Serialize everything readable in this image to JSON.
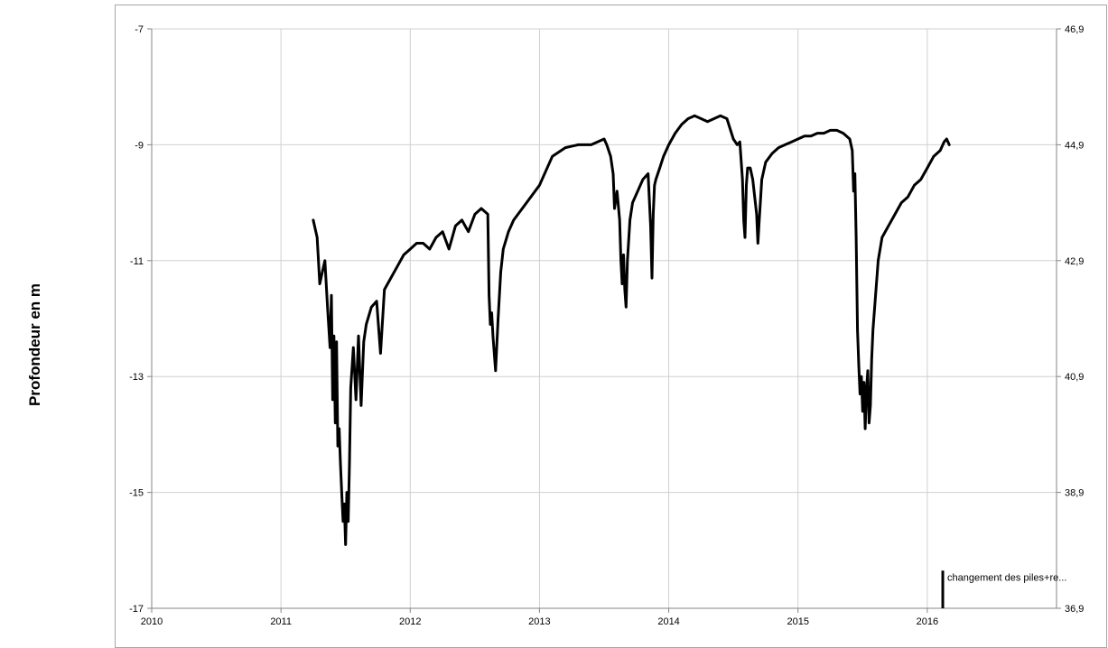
{
  "chart_data": {
    "type": "line",
    "title": "",
    "ylabel": "Profondeur en m",
    "xlabel": "",
    "y2label": "",
    "grid": true,
    "legend": "none",
    "xlim": [
      2010,
      2017
    ],
    "ylim": [
      -17,
      -7
    ],
    "y2lim": [
      36.9,
      46.9
    ],
    "x_ticks": [
      "2010",
      "2011",
      "2012",
      "2013",
      "2014",
      "2015",
      "2016"
    ],
    "y_ticks": [
      "-7",
      "-9",
      "-11",
      "-13",
      "-15",
      "-17"
    ],
    "y2_ticks": [
      "46,9",
      "44,9",
      "42,9",
      "40,9",
      "38,9",
      "36,9"
    ],
    "series": [
      {
        "color": "#000000",
        "x": [
          2011.25,
          2011.28,
          2011.3,
          2011.32,
          2011.34,
          2011.36,
          2011.38,
          2011.39,
          2011.4,
          2011.41,
          2011.42,
          2011.43,
          2011.44,
          2011.45,
          2011.46,
          2011.47,
          2011.48,
          2011.49,
          2011.5,
          2011.51,
          2011.52,
          2011.53,
          2011.54,
          2011.56,
          2011.58,
          2011.6,
          2011.62,
          2011.64,
          2011.66,
          2011.7,
          2011.74,
          2011.77,
          2011.8,
          2011.85,
          2011.9,
          2011.95,
          2012.0,
          2012.05,
          2012.1,
          2012.15,
          2012.2,
          2012.25,
          2012.3,
          2012.35,
          2012.4,
          2012.45,
          2012.5,
          2012.55,
          2012.6,
          2012.61,
          2012.62,
          2012.63,
          2012.64,
          2012.66,
          2012.68,
          2012.7,
          2012.72,
          2012.76,
          2012.8,
          2012.9,
          2013.0,
          2013.1,
          2013.2,
          2013.3,
          2013.4,
          2013.5,
          2013.52,
          2013.55,
          2013.57,
          2013.58,
          2013.6,
          2013.62,
          2013.63,
          2013.64,
          2013.65,
          2013.66,
          2013.67,
          2013.68,
          2013.7,
          2013.72,
          2013.76,
          2013.8,
          2013.84,
          2013.86,
          2013.87,
          2013.88,
          2013.89,
          2013.9,
          2013.93,
          2013.96,
          2014.0,
          2014.05,
          2014.1,
          2014.15,
          2014.2,
          2014.25,
          2014.3,
          2014.35,
          2014.4,
          2014.45,
          2014.5,
          2014.53,
          2014.55,
          2014.57,
          2014.58,
          2014.59,
          2014.6,
          2014.61,
          2014.63,
          2014.65,
          2014.68,
          2014.69,
          2014.7,
          2014.72,
          2014.75,
          2014.8,
          2014.85,
          2014.9,
          2014.95,
          2015.0,
          2015.05,
          2015.1,
          2015.15,
          2015.2,
          2015.25,
          2015.3,
          2015.35,
          2015.4,
          2015.42,
          2015.43,
          2015.44,
          2015.45,
          2015.46,
          2015.47,
          2015.48,
          2015.49,
          2015.5,
          2015.51,
          2015.52,
          2015.53,
          2015.54,
          2015.55,
          2015.56,
          2015.57,
          2015.58,
          2015.6,
          2015.62,
          2015.65,
          2015.7,
          2015.75,
          2015.8,
          2015.85,
          2015.9,
          2015.95,
          2016.0,
          2016.05,
          2016.1,
          2016.13,
          2016.15,
          2016.17
        ],
        "y": [
          -10.3,
          -10.6,
          -11.4,
          -11.2,
          -11.0,
          -11.8,
          -12.5,
          -11.6,
          -13.4,
          -12.3,
          -13.8,
          -12.4,
          -14.2,
          -13.9,
          -14.5,
          -15.0,
          -15.5,
          -15.2,
          -15.9,
          -15.0,
          -15.5,
          -14.5,
          -13.2,
          -12.5,
          -13.4,
          -12.3,
          -13.5,
          -12.4,
          -12.1,
          -11.8,
          -11.7,
          -12.6,
          -11.5,
          -11.3,
          -11.1,
          -10.9,
          -10.8,
          -10.7,
          -10.7,
          -10.8,
          -10.6,
          -10.5,
          -10.8,
          -10.4,
          -10.3,
          -10.5,
          -10.2,
          -10.1,
          -10.2,
          -11.6,
          -12.1,
          -11.9,
          -12.3,
          -12.9,
          -12.0,
          -11.2,
          -10.8,
          -10.5,
          -10.3,
          -10.0,
          -9.7,
          -9.2,
          -9.05,
          -9.0,
          -9.0,
          -8.9,
          -9.0,
          -9.2,
          -9.5,
          -10.1,
          -9.8,
          -10.3,
          -11.0,
          -11.4,
          -10.9,
          -11.5,
          -11.8,
          -11.0,
          -10.3,
          -10.0,
          -9.8,
          -9.6,
          -9.5,
          -10.4,
          -11.3,
          -10.2,
          -9.7,
          -9.6,
          -9.4,
          -9.2,
          -9.0,
          -8.8,
          -8.65,
          -8.55,
          -8.5,
          -8.55,
          -8.6,
          -8.55,
          -8.5,
          -8.55,
          -8.9,
          -9.0,
          -8.95,
          -9.6,
          -10.3,
          -10.6,
          -9.7,
          -9.4,
          -9.4,
          -9.6,
          -10.2,
          -10.7,
          -10.3,
          -9.6,
          -9.3,
          -9.15,
          -9.05,
          -9.0,
          -8.95,
          -8.9,
          -8.85,
          -8.85,
          -8.8,
          -8.8,
          -8.75,
          -8.75,
          -8.8,
          -8.9,
          -9.1,
          -9.8,
          -9.5,
          -10.6,
          -12.2,
          -12.8,
          -13.3,
          -13.0,
          -13.6,
          -13.1,
          -13.9,
          -13.2,
          -12.9,
          -13.8,
          -13.5,
          -12.7,
          -12.2,
          -11.6,
          -11.0,
          -10.6,
          -10.4,
          -10.2,
          -10.0,
          -9.9,
          -9.7,
          -9.6,
          -9.4,
          -9.2,
          -9.1,
          -8.95,
          -8.9,
          -9.0
        ]
      }
    ],
    "annotations": [
      {
        "x": 2016.12,
        "y_from": -17,
        "y_to": -16.35,
        "text": "changement des piles+re..."
      }
    ]
  }
}
